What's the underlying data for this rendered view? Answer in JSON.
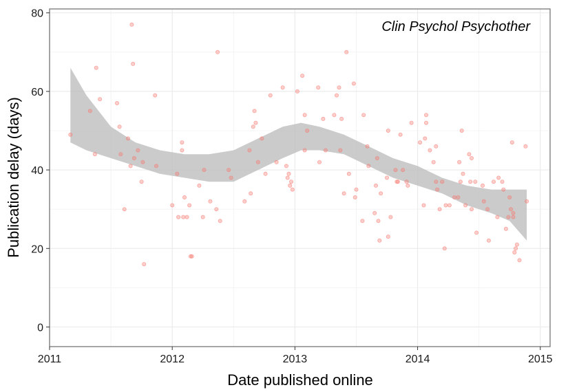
{
  "chart_data": {
    "type": "scatter",
    "title": "",
    "annotation": "Clin Psychol Psychother",
    "xlabel": "Date published online",
    "ylabel": "Publication delay (days)",
    "xlim": [
      2011.0,
      2015.08
    ],
    "ylim": [
      -5,
      81
    ],
    "x_ticks": [
      2011,
      2012,
      2013,
      2014,
      2015
    ],
    "x_tick_labels": [
      "2011",
      "2012",
      "2013",
      "2014",
      "2015"
    ],
    "y_ticks": [
      0,
      20,
      40,
      60,
      80
    ],
    "y_tick_labels": [
      "0",
      "20",
      "40",
      "60",
      "80"
    ],
    "grid": true,
    "legend": "none",
    "point_color": "#f8766d",
    "band_color": "#bebebe",
    "points": [
      {
        "x": 2011.17,
        "y": 49
      },
      {
        "x": 2011.33,
        "y": 55
      },
      {
        "x": 2011.37,
        "y": 44
      },
      {
        "x": 2011.38,
        "y": 66
      },
      {
        "x": 2011.41,
        "y": 58
      },
      {
        "x": 2011.55,
        "y": 57
      },
      {
        "x": 2011.57,
        "y": 51
      },
      {
        "x": 2011.58,
        "y": 44
      },
      {
        "x": 2011.61,
        "y": 30
      },
      {
        "x": 2011.64,
        "y": 48
      },
      {
        "x": 2011.66,
        "y": 41
      },
      {
        "x": 2011.67,
        "y": 77
      },
      {
        "x": 2011.68,
        "y": 67
      },
      {
        "x": 2011.69,
        "y": 43
      },
      {
        "x": 2011.72,
        "y": 45
      },
      {
        "x": 2011.75,
        "y": 37
      },
      {
        "x": 2011.76,
        "y": 42
      },
      {
        "x": 2011.77,
        "y": 16
      },
      {
        "x": 2011.86,
        "y": 59
      },
      {
        "x": 2011.87,
        "y": 41
      },
      {
        "x": 2012.0,
        "y": 31
      },
      {
        "x": 2012.04,
        "y": 39
      },
      {
        "x": 2012.05,
        "y": 28
      },
      {
        "x": 2012.08,
        "y": 45
      },
      {
        "x": 2012.08,
        "y": 47
      },
      {
        "x": 2012.09,
        "y": 28
      },
      {
        "x": 2012.1,
        "y": 33
      },
      {
        "x": 2012.12,
        "y": 28
      },
      {
        "x": 2012.14,
        "y": 31
      },
      {
        "x": 2012.15,
        "y": 18
      },
      {
        "x": 2012.16,
        "y": 18
      },
      {
        "x": 2012.22,
        "y": 36
      },
      {
        "x": 2012.25,
        "y": 28
      },
      {
        "x": 2012.26,
        "y": 40
      },
      {
        "x": 2012.31,
        "y": 32
      },
      {
        "x": 2012.36,
        "y": 30
      },
      {
        "x": 2012.37,
        "y": 70
      },
      {
        "x": 2012.39,
        "y": 27
      },
      {
        "x": 2012.46,
        "y": 40
      },
      {
        "x": 2012.48,
        "y": 38
      },
      {
        "x": 2012.59,
        "y": 32
      },
      {
        "x": 2012.63,
        "y": 45
      },
      {
        "x": 2012.64,
        "y": 34
      },
      {
        "x": 2012.66,
        "y": 51
      },
      {
        "x": 2012.67,
        "y": 55
      },
      {
        "x": 2012.68,
        "y": 52
      },
      {
        "x": 2012.7,
        "y": 42
      },
      {
        "x": 2012.73,
        "y": 48
      },
      {
        "x": 2012.76,
        "y": 39
      },
      {
        "x": 2012.8,
        "y": 59
      },
      {
        "x": 2012.85,
        "y": 42
      },
      {
        "x": 2012.9,
        "y": 61
      },
      {
        "x": 2012.93,
        "y": 41
      },
      {
        "x": 2012.94,
        "y": 38
      },
      {
        "x": 2012.95,
        "y": 39
      },
      {
        "x": 2012.96,
        "y": 36
      },
      {
        "x": 2012.97,
        "y": 37
      },
      {
        "x": 2012.98,
        "y": 35
      },
      {
        "x": 2013.02,
        "y": 60
      },
      {
        "x": 2013.06,
        "y": 64
      },
      {
        "x": 2013.08,
        "y": 54
      },
      {
        "x": 2013.08,
        "y": 45
      },
      {
        "x": 2013.1,
        "y": 50
      },
      {
        "x": 2013.19,
        "y": 61
      },
      {
        "x": 2013.2,
        "y": 42
      },
      {
        "x": 2013.23,
        "y": 53
      },
      {
        "x": 2013.25,
        "y": 45
      },
      {
        "x": 2013.32,
        "y": 54
      },
      {
        "x": 2013.34,
        "y": 59
      },
      {
        "x": 2013.36,
        "y": 61
      },
      {
        "x": 2013.37,
        "y": 45
      },
      {
        "x": 2013.38,
        "y": 53
      },
      {
        "x": 2013.4,
        "y": 34
      },
      {
        "x": 2013.42,
        "y": 70
      },
      {
        "x": 2013.44,
        "y": 39
      },
      {
        "x": 2013.48,
        "y": 62
      },
      {
        "x": 2013.49,
        "y": 33
      },
      {
        "x": 2013.5,
        "y": 35
      },
      {
        "x": 2013.55,
        "y": 27
      },
      {
        "x": 2013.56,
        "y": 54
      },
      {
        "x": 2013.59,
        "y": 46
      },
      {
        "x": 2013.6,
        "y": 41
      },
      {
        "x": 2013.65,
        "y": 29
      },
      {
        "x": 2013.66,
        "y": 36
      },
      {
        "x": 2013.67,
        "y": 43
      },
      {
        "x": 2013.68,
        "y": 27
      },
      {
        "x": 2013.69,
        "y": 22
      },
      {
        "x": 2013.7,
        "y": 34
      },
      {
        "x": 2013.75,
        "y": 38
      },
      {
        "x": 2013.76,
        "y": 23
      },
      {
        "x": 2013.76,
        "y": 50
      },
      {
        "x": 2013.78,
        "y": 28
      },
      {
        "x": 2013.82,
        "y": 40
      },
      {
        "x": 2013.83,
        "y": 37
      },
      {
        "x": 2013.84,
        "y": 37
      },
      {
        "x": 2013.86,
        "y": 49
      },
      {
        "x": 2013.88,
        "y": 40
      },
      {
        "x": 2013.91,
        "y": 37
      },
      {
        "x": 2013.92,
        "y": 36
      },
      {
        "x": 2013.95,
        "y": 52
      },
      {
        "x": 2014.02,
        "y": 47
      },
      {
        "x": 2014.05,
        "y": 31
      },
      {
        "x": 2014.06,
        "y": 48
      },
      {
        "x": 2014.07,
        "y": 54
      },
      {
        "x": 2014.07,
        "y": 52
      },
      {
        "x": 2014.1,
        "y": 45
      },
      {
        "x": 2014.13,
        "y": 42
      },
      {
        "x": 2014.15,
        "y": 37
      },
      {
        "x": 2014.15,
        "y": 46
      },
      {
        "x": 2014.16,
        "y": 35
      },
      {
        "x": 2014.18,
        "y": 30
      },
      {
        "x": 2014.2,
        "y": 37
      },
      {
        "x": 2014.22,
        "y": 20
      },
      {
        "x": 2014.23,
        "y": 31
      },
      {
        "x": 2014.26,
        "y": 31
      },
      {
        "x": 2014.3,
        "y": 33
      },
      {
        "x": 2014.33,
        "y": 33
      },
      {
        "x": 2014.34,
        "y": 42
      },
      {
        "x": 2014.35,
        "y": 37
      },
      {
        "x": 2014.36,
        "y": 50
      },
      {
        "x": 2014.37,
        "y": 39
      },
      {
        "x": 2014.39,
        "y": 31
      },
      {
        "x": 2014.42,
        "y": 44
      },
      {
        "x": 2014.43,
        "y": 37
      },
      {
        "x": 2014.44,
        "y": 30
      },
      {
        "x": 2014.44,
        "y": 43
      },
      {
        "x": 2014.47,
        "y": 37
      },
      {
        "x": 2014.48,
        "y": 24
      },
      {
        "x": 2014.53,
        "y": 36
      },
      {
        "x": 2014.54,
        "y": 32
      },
      {
        "x": 2014.57,
        "y": 30
      },
      {
        "x": 2014.58,
        "y": 22
      },
      {
        "x": 2014.62,
        "y": 37
      },
      {
        "x": 2014.65,
        "y": 28
      },
      {
        "x": 2014.66,
        "y": 38
      },
      {
        "x": 2014.69,
        "y": 37
      },
      {
        "x": 2014.7,
        "y": 35
      },
      {
        "x": 2014.72,
        "y": 25
      },
      {
        "x": 2014.74,
        "y": 28
      },
      {
        "x": 2014.75,
        "y": 33
      },
      {
        "x": 2014.76,
        "y": 30
      },
      {
        "x": 2014.77,
        "y": 47
      },
      {
        "x": 2014.78,
        "y": 29
      },
      {
        "x": 2014.78,
        "y": 28
      },
      {
        "x": 2014.79,
        "y": 19
      },
      {
        "x": 2014.8,
        "y": 20
      },
      {
        "x": 2014.81,
        "y": 21
      },
      {
        "x": 2014.83,
        "y": 17
      },
      {
        "x": 2014.88,
        "y": 46
      },
      {
        "x": 2014.89,
        "y": 32
      }
    ],
    "smooth_band": {
      "x": [
        2011.17,
        2011.3,
        2011.5,
        2011.7,
        2011.9,
        2012.1,
        2012.3,
        2012.5,
        2012.7,
        2012.9,
        2013.05,
        2013.2,
        2013.4,
        2013.6,
        2013.8,
        2014.0,
        2014.2,
        2014.4,
        2014.6,
        2014.75,
        2014.89
      ],
      "upper": [
        66,
        59,
        51,
        47,
        45,
        44,
        44,
        45,
        48,
        51,
        52,
        51,
        49,
        46,
        43,
        41,
        38,
        36,
        35,
        35,
        35
      ],
      "lower": [
        47,
        45,
        43,
        41,
        39,
        38,
        37,
        37,
        40,
        43,
        45,
        45,
        44,
        41,
        38,
        36,
        34,
        31,
        29,
        27,
        22
      ]
    }
  }
}
